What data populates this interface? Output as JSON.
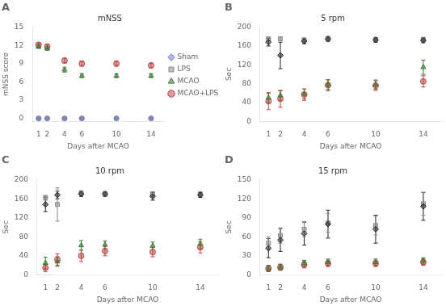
{
  "chart_data": [
    {
      "type": "scatter",
      "title": "mNSS",
      "annotations": [
        "A"
      ],
      "xlabel": "Days after MCAO",
      "ylabel": "mNSS score",
      "x": [
        1,
        2,
        4,
        6,
        10,
        14
      ],
      "xlim": [
        0.3,
        15.5
      ],
      "xticks": [
        1,
        2,
        4,
        6,
        10,
        14
      ],
      "ylim": [
        -0.5,
        15
      ],
      "yticks": [
        0,
        3,
        6,
        9,
        12,
        15
      ],
      "grid": false,
      "legend": "right",
      "series": [
        {
          "name": "Sham",
          "color": "#7777cc",
          "marker": "diamond",
          "values": [
            0,
            0,
            0,
            0,
            0,
            0
          ],
          "yerr": [
            0.05,
            0.05,
            0.05,
            0.05,
            0.05,
            0.05
          ]
        },
        {
          "name": "LPS",
          "color": "#888888",
          "marker": "square",
          "values": [
            0,
            0,
            0,
            0,
            0,
            0
          ],
          "yerr": [
            0.05,
            0.05,
            0.05,
            0.05,
            0.05,
            0.05
          ]
        },
        {
          "name": "MCAO",
          "color": "#3a7a30",
          "marker": "triangle",
          "values": [
            11.8,
            11.5,
            8.0,
            7.0,
            7.0,
            7.0
          ],
          "yerr": [
            0.3,
            0.3,
            0.4,
            0.3,
            0.3,
            0.3
          ]
        },
        {
          "name": "MCAO+LPS",
          "color": "#bb4444",
          "marker": "circle",
          "values": [
            12.1,
            11.8,
            9.5,
            9.0,
            9.0,
            8.7
          ],
          "yerr": [
            0.3,
            0.3,
            0.4,
            0.4,
            0.4,
            0.4
          ]
        }
      ]
    },
    {
      "type": "scatter",
      "title": "5 rpm",
      "annotations": [
        "B"
      ],
      "xlabel": "Days after MCAO",
      "ylabel": "Sec",
      "x": [
        1,
        2,
        4,
        6,
        10,
        14
      ],
      "xlim": [
        0.3,
        15.5
      ],
      "xticks": [
        1,
        2,
        4,
        6,
        10,
        14
      ],
      "ylim": [
        0,
        200
      ],
      "yticks": [
        0,
        40,
        80,
        120,
        160,
        200
      ],
      "grid": false,
      "series": [
        {
          "color": "#222222",
          "marker": "diamond",
          "values": [
            168,
            140,
            170,
            175,
            173,
            172
          ],
          "yerr": [
            8,
            28,
            5,
            5,
            5,
            5
          ]
        },
        {
          "color": "#888888",
          "marker": "square",
          "values": [
            175,
            175,
            173,
            175,
            174,
            174
          ],
          "yerr": [
            4,
            4,
            4,
            4,
            4,
            4
          ]
        },
        {
          "color": "#3a7a30",
          "marker": "triangle",
          "values": [
            50,
            55,
            58,
            78,
            78,
            115
          ],
          "yerr": [
            10,
            10,
            10,
            10,
            10,
            15
          ]
        },
        {
          "color": "#bb4444",
          "marker": "circle",
          "values": [
            43,
            48,
            57,
            77,
            76,
            85
          ],
          "yerr": [
            18,
            18,
            12,
            12,
            10,
            12
          ]
        }
      ]
    },
    {
      "type": "scatter",
      "title": "10 rpm",
      "annotations": [
        "C"
      ],
      "xlabel": "Days after MCAO",
      "ylabel": "Sec",
      "x": [
        1,
        2,
        4,
        6,
        10,
        14
      ],
      "xlim": [
        0.3,
        15.5
      ],
      "xticks": [
        1,
        2,
        4,
        6,
        10,
        14
      ],
      "ylim": [
        0,
        200
      ],
      "yticks": [
        0,
        40,
        80,
        120,
        160,
        200
      ],
      "grid": false,
      "series": [
        {
          "color": "#222222",
          "marker": "diamond",
          "values": [
            148,
            168,
            170,
            170,
            165,
            168
          ],
          "yerr": [
            15,
            8,
            5,
            5,
            8,
            5
          ]
        },
        {
          "color": "#888888",
          "marker": "square",
          "values": [
            162,
            148,
            172,
            170,
            170,
            170
          ],
          "yerr": [
            5,
            35,
            5,
            5,
            5,
            5
          ]
        },
        {
          "color": "#3a7a30",
          "marker": "triangle",
          "values": [
            25,
            28,
            62,
            63,
            61,
            65
          ],
          "yerr": [
            12,
            10,
            10,
            8,
            8,
            10
          ]
        },
        {
          "color": "#bb4444",
          "marker": "circle",
          "values": [
            15,
            32,
            40,
            50,
            48,
            58
          ],
          "yerr": [
            8,
            12,
            12,
            10,
            10,
            12
          ]
        }
      ]
    },
    {
      "type": "scatter",
      "title": "15 rpm",
      "annotations": [
        "D"
      ],
      "xlabel": "Days after MCAO",
      "ylabel": "Sec",
      "x": [
        1,
        2,
        4,
        6,
        10,
        14
      ],
      "xlim": [
        0.3,
        15.5
      ],
      "xticks": [
        1,
        2,
        4,
        6,
        10,
        14
      ],
      "ylim": [
        0,
        150
      ],
      "yticks": [
        0,
        30,
        60,
        90,
        120,
        150
      ],
      "grid": false,
      "series": [
        {
          "color": "#222222",
          "marker": "diamond",
          "values": [
            42,
            55,
            65,
            80,
            72,
            108
          ],
          "yerr": [
            15,
            18,
            18,
            22,
            22,
            22
          ]
        },
        {
          "color": "#888888",
          "marker": "square",
          "values": [
            50,
            62,
            72,
            82,
            78,
            112
          ],
          "yerr": [
            10,
            12,
            12,
            15,
            15,
            18
          ]
        },
        {
          "color": "#3a7a30",
          "marker": "triangle",
          "values": [
            10,
            12,
            18,
            20,
            20,
            22
          ],
          "yerr": [
            5,
            5,
            5,
            5,
            5,
            5
          ]
        },
        {
          "color": "#bb4444",
          "marker": "circle",
          "values": [
            10,
            12,
            16,
            18,
            18,
            20
          ],
          "yerr": [
            4,
            4,
            5,
            5,
            5,
            5
          ]
        }
      ]
    }
  ]
}
